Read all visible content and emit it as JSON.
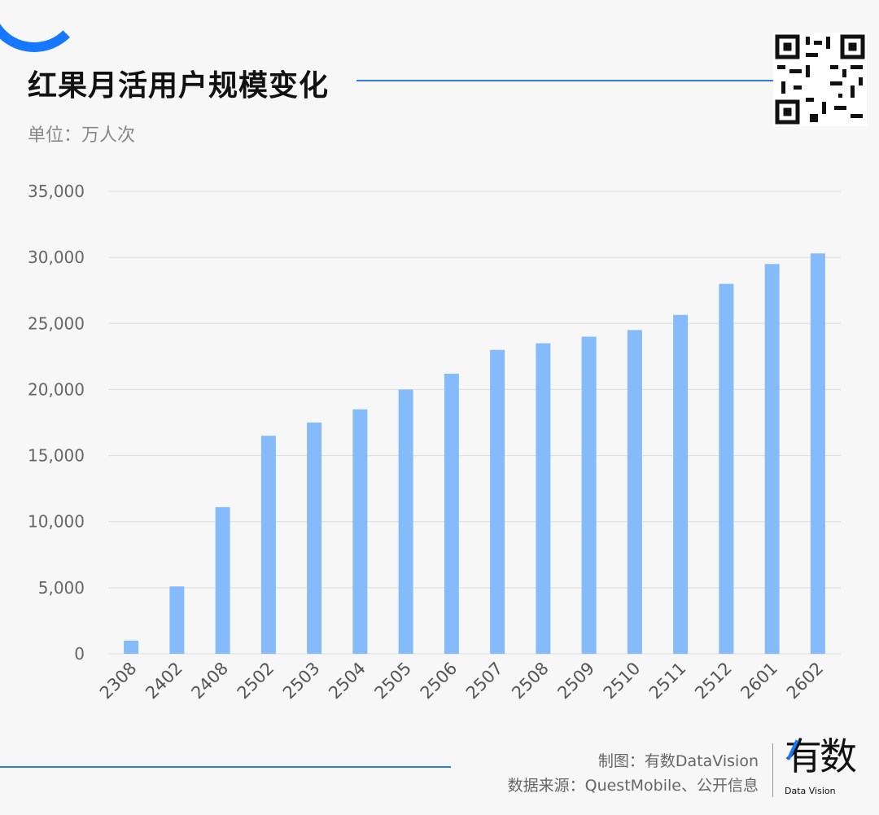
{
  "header": {
    "title": "红果月活用户规模变化",
    "unit": "单位：万人次"
  },
  "footer": {
    "credit": "制图：有数DataVision",
    "source": "数据来源：QuestMobile、公开信息",
    "logo_text": "有数",
    "logo_sub": "Data Vision"
  },
  "colors": {
    "bar": "#85bbfb",
    "accent": "#2b7de9",
    "grid": "#dddddd"
  },
  "chart_data": {
    "type": "bar",
    "categories": [
      "2308",
      "2402",
      "2408",
      "2502",
      "2503",
      "2504",
      "2505",
      "2506",
      "2507",
      "2508",
      "2509",
      "2510",
      "2511",
      "2512",
      "2601",
      "2602"
    ],
    "values": [
      1000,
      5100,
      11100,
      16500,
      17500,
      18500,
      20000,
      21200,
      23000,
      23500,
      24000,
      24500,
      25650,
      28000,
      29500,
      30300
    ],
    "ylim": [
      0,
      35000
    ],
    "yticks": [
      "0",
      "5,000",
      "10,000",
      "15,000",
      "20,000",
      "25,000",
      "30,000",
      "35,000"
    ],
    "grid": true
  }
}
